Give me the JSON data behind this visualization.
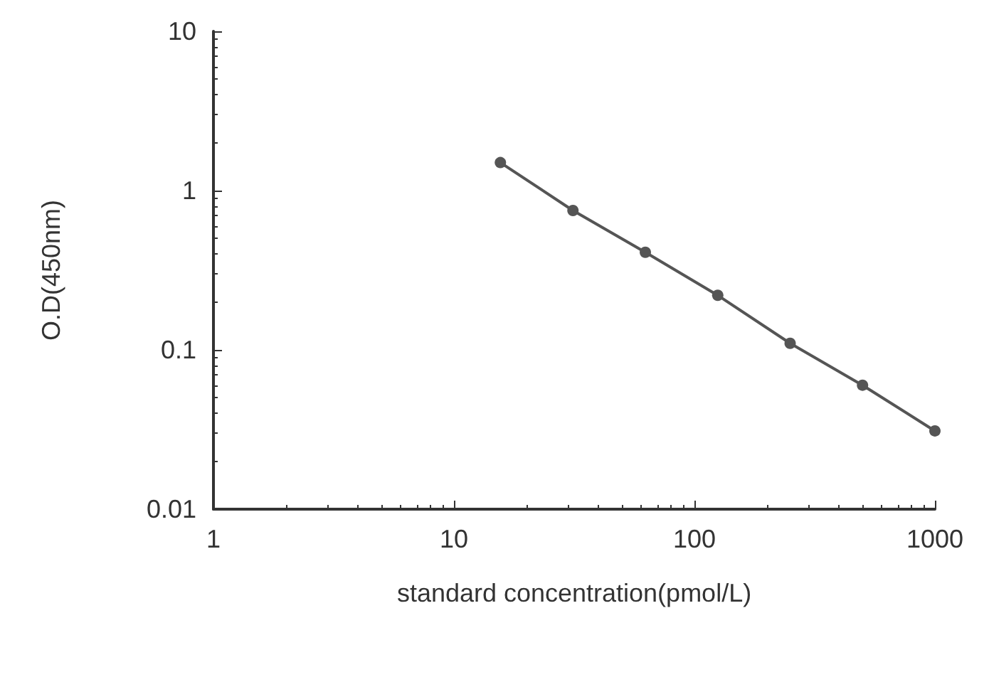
{
  "chart_data": {
    "type": "line",
    "xlabel": "standard concentration(pmol/L)",
    "ylabel": "O.D(450nm)",
    "x": [
      15.6,
      31.25,
      62.5,
      125,
      250,
      500,
      1000
    ],
    "values": [
      1.5,
      0.75,
      0.41,
      0.22,
      0.11,
      0.06,
      0.031
    ],
    "color": "#555555",
    "marker": "circle",
    "line_style": "solid",
    "log": "xy",
    "grid": false,
    "xlim": [
      1,
      1000
    ],
    "xticks": [
      1,
      10,
      100,
      1000
    ],
    "ylim": [
      0.01,
      10
    ],
    "yticks": [
      0.01,
      0.1,
      1,
      10
    ]
  }
}
